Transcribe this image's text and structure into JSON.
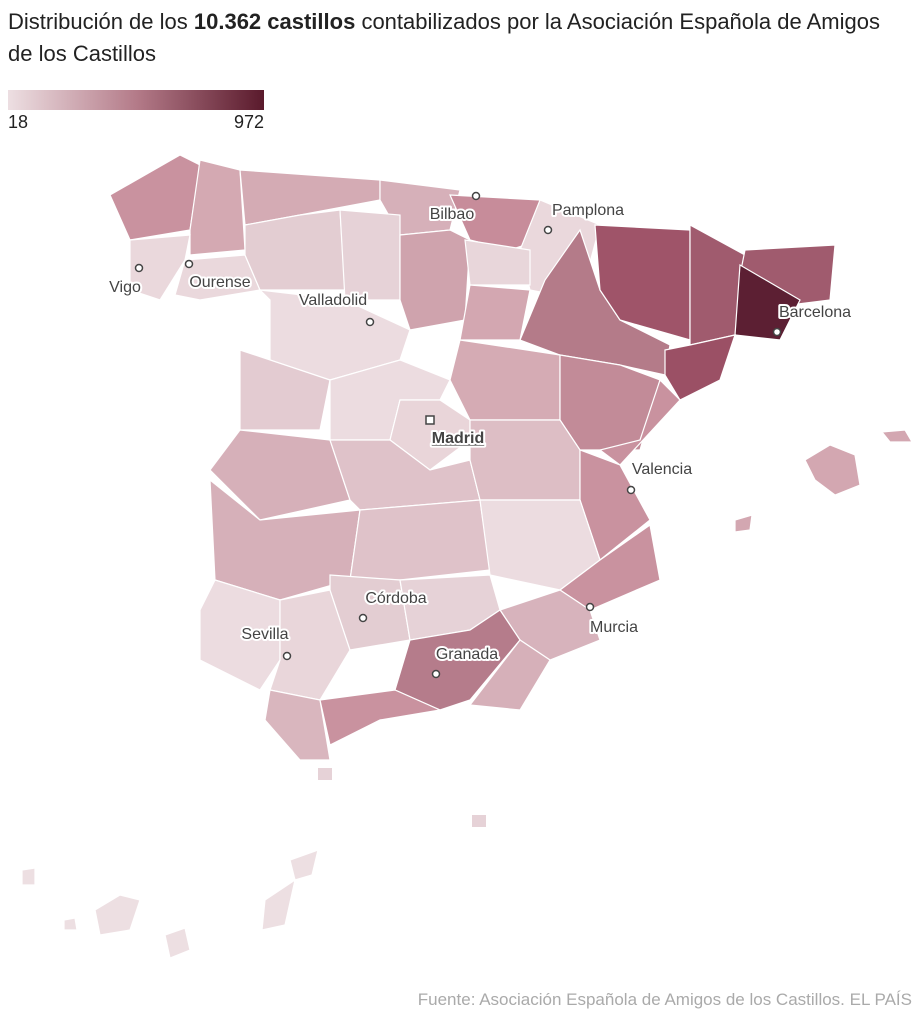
{
  "title": {
    "before": "Distribución de los ",
    "bold": "10.362 castillos",
    "after": " contabilizados por la Asociación Española de Amigos de los Castillos"
  },
  "legend": {
    "min": 18,
    "max": 972,
    "colors": [
      "#eddfe2",
      "#b47b89",
      "#5a1a2c"
    ]
  },
  "cities": [
    {
      "name": "Bilbao"
    },
    {
      "name": "Pamplona"
    },
    {
      "name": "Vigo"
    },
    {
      "name": "Ourense"
    },
    {
      "name": "Valladolid"
    },
    {
      "name": "Madrid",
      "capital": true
    },
    {
      "name": "Barcelona"
    },
    {
      "name": "Valencia"
    },
    {
      "name": "Córdoba"
    },
    {
      "name": "Sevilla"
    },
    {
      "name": "Granada"
    },
    {
      "name": "Murcia"
    }
  ],
  "source": "Fuente: Asociación Española de Amigos de los Castillos. EL PAÍS"
}
